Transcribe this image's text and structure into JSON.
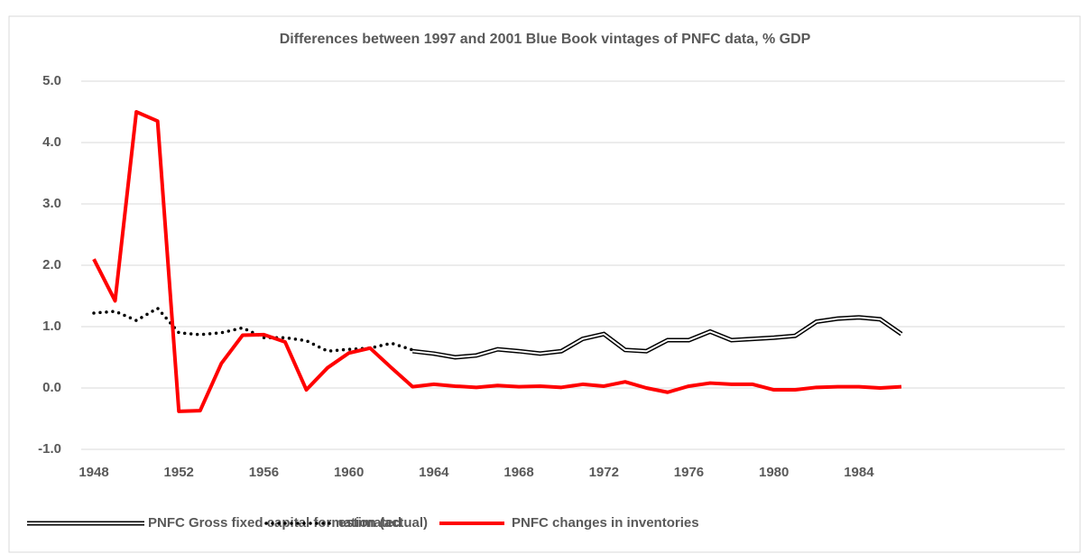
{
  "chart_data": {
    "type": "line",
    "title": "Differences between 1997 and 2001 Blue Book vintages of PNFC data, % GDP",
    "x": [
      1948,
      1949,
      1950,
      1951,
      1952,
      1953,
      1954,
      1955,
      1956,
      1957,
      1958,
      1959,
      1960,
      1961,
      1962,
      1963,
      1964,
      1965,
      1966,
      1967,
      1968,
      1969,
      1970,
      1971,
      1972,
      1973,
      1974,
      1975,
      1976,
      1977,
      1978,
      1979,
      1980,
      1981,
      1982,
      1983,
      1984,
      1985,
      1986
    ],
    "xlim": [
      1948,
      1986
    ],
    "xticks": [
      1948,
      1952,
      1956,
      1960,
      1964,
      1968,
      1972,
      1976,
      1980,
      1984
    ],
    "ylim": [
      -1,
      5
    ],
    "yticks": [
      {
        "value": -1,
        "label": "-1.0"
      },
      {
        "value": 0,
        "label": "0.0"
      },
      {
        "value": 1,
        "label": "1.0"
      },
      {
        "value": 2,
        "label": "2.0"
      },
      {
        "value": 3,
        "label": "3.0"
      },
      {
        "value": 4,
        "label": "4.0"
      },
      {
        "value": 5,
        "label": "5.0"
      }
    ],
    "grid": true,
    "legend": "bottom",
    "series": [
      {
        "name": "PNFC Gross fixed capital formation (actual)",
        "color": "#000000",
        "style": "double",
        "values": [
          null,
          null,
          null,
          null,
          null,
          null,
          null,
          null,
          null,
          null,
          null,
          null,
          null,
          null,
          null,
          0.6,
          0.56,
          0.5,
          0.53,
          0.63,
          0.6,
          0.56,
          0.6,
          0.8,
          0.88,
          0.62,
          0.6,
          0.78,
          0.78,
          0.92,
          0.78,
          0.8,
          0.82,
          0.85,
          1.08,
          1.13,
          1.15,
          1.12,
          0.88
        ]
      },
      {
        "name": "estimated",
        "color": "#000000",
        "style": "dotted",
        "values": [
          1.22,
          1.25,
          1.1,
          1.3,
          0.9,
          0.87,
          0.9,
          0.98,
          0.82,
          0.82,
          0.77,
          0.6,
          0.63,
          0.65,
          0.73,
          0.62,
          null,
          null,
          null,
          null,
          null,
          null,
          null,
          null,
          null,
          null,
          null,
          null,
          null,
          null,
          null,
          null,
          null,
          null,
          null,
          null,
          null,
          null,
          null
        ]
      },
      {
        "name": "PNFC changes in inventories",
        "color": "#ff0000",
        "style": "solid",
        "values": [
          2.1,
          1.42,
          4.5,
          4.35,
          -0.38,
          -0.37,
          0.4,
          0.86,
          0.87,
          0.75,
          -0.03,
          0.33,
          0.57,
          0.65,
          0.33,
          0.02,
          0.06,
          0.03,
          0.01,
          0.04,
          0.02,
          0.03,
          0.01,
          0.06,
          0.03,
          0.1,
          0.0,
          -0.07,
          0.03,
          0.08,
          0.06,
          0.06,
          -0.03,
          -0.03,
          0.01,
          0.02,
          0.02,
          0.0,
          0.02
        ]
      }
    ]
  }
}
